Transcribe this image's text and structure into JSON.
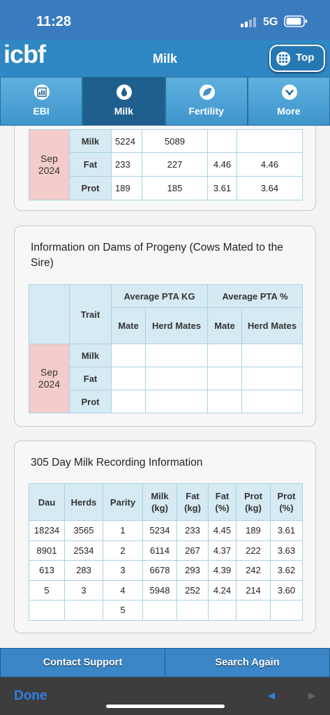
{
  "status_bar": {
    "time": "11:28",
    "network": "5G"
  },
  "header": {
    "logo": "icbf",
    "title": "Milk",
    "top_button": "Top"
  },
  "tabs": [
    "EBI",
    "Milk",
    "Fertility",
    "More"
  ],
  "daughter_table": {
    "period": "Sep 2024",
    "rows": [
      {
        "trait": "Milk",
        "values": [
          "5224",
          "5089",
          null,
          null
        ]
      },
      {
        "trait": "Fat",
        "values": [
          "233",
          "227",
          "4.46",
          "4.46"
        ]
      },
      {
        "trait": "Prot",
        "values": [
          "189",
          "185",
          "3.61",
          "3.64"
        ]
      }
    ]
  },
  "dams_section": {
    "title": "Information on Dams of Progeny (Cows Mated to the Sire)",
    "trait_header": "Trait",
    "group_headers": [
      "Average PTA KG",
      "Average PTA %"
    ],
    "sub_headers": [
      "Mate",
      "Herd Mates",
      "Mate",
      "Herd Mates"
    ],
    "period": "Sep 2024",
    "traits": [
      "Milk",
      "Fat",
      "Prot"
    ]
  },
  "recording_section": {
    "title": "305 Day Milk Recording Information",
    "columns": [
      "Dau",
      "Herds",
      "Parity",
      "Milk (kg)",
      "Fat (kg)",
      "Fat (%)",
      "Prot (kg)",
      "Prot (%)"
    ],
    "rows": [
      [
        "18234",
        "3565",
        "1",
        "5234",
        "233",
        "4.45",
        "189",
        "3.61"
      ],
      [
        "8901",
        "2534",
        "2",
        "6114",
        "267",
        "4.37",
        "222",
        "3.63"
      ],
      [
        "613",
        "283",
        "3",
        "6678",
        "293",
        "4.39",
        "242",
        "3.62"
      ],
      [
        "5",
        "3",
        "4",
        "5948",
        "252",
        "4.24",
        "214",
        "3.60"
      ],
      [
        null,
        null,
        "5",
        null,
        null,
        null,
        null,
        null
      ]
    ]
  },
  "footer": {
    "contact_button": "Contact Support",
    "search_button": "Search Again",
    "done": "Done"
  }
}
